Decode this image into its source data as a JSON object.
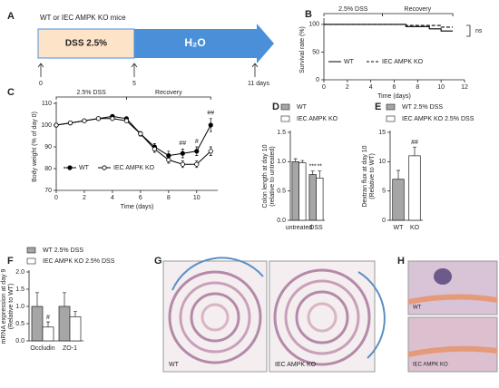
{
  "panel_labels": [
    "A",
    "B",
    "C",
    "D",
    "E",
    "F",
    "G",
    "H"
  ],
  "timeline": {
    "title": "WT or IEC AMPK KO mice",
    "phases": [
      "DSS 2.5%",
      "H₂O"
    ],
    "ticks": [
      "0",
      "5",
      "11 days"
    ]
  },
  "images": [
    {
      "labels": [
        "WT",
        "IEC AMPK KO"
      ]
    },
    {
      "labels": [
        "WT",
        "IEC AMPK KO"
      ]
    }
  ],
  "chart_data": [
    {
      "type": "line",
      "ylabel": [
        "Survival rate (%)"
      ],
      "xlabel": "Time (days)",
      "xlim": [
        0,
        12
      ],
      "xticks": [
        0,
        2,
        4,
        6,
        8,
        10,
        12
      ],
      "ylim": [
        0,
        108
      ],
      "yticks": [
        0,
        50,
        100
      ],
      "periods": [
        {
          "label": "2.5% DSS",
          "start": 0,
          "end": 5
        },
        {
          "label": "Recovery",
          "start": 5,
          "end": 11
        }
      ],
      "annotations": [
        "ns"
      ],
      "series": [
        {
          "name": "WT",
          "color": "#000000",
          "dash": false,
          "x": [
            0,
            7,
            7,
            9,
            9,
            10,
            10,
            11
          ],
          "values": [
            100,
            100,
            96,
            96,
            92,
            92,
            88,
            88
          ]
        },
        {
          "name": "IEC AMPK KO",
          "color": "#000000",
          "dash": true,
          "x": [
            0,
            7,
            7,
            10,
            10,
            11
          ],
          "values": [
            100,
            100,
            98,
            98,
            95,
            95
          ]
        }
      ]
    },
    {
      "type": "line",
      "ylabel": [
        "Body weight (% of day 0)"
      ],
      "xlabel": "Time (days)",
      "markers": true,
      "xlim": [
        0,
        11.5
      ],
      "xticks": [
        0,
        2,
        4,
        6,
        8,
        10
      ],
      "ylim": [
        70,
        110
      ],
      "yticks": [
        70,
        80,
        90,
        100,
        110
      ],
      "periods": [
        {
          "label": "2.5% DSS",
          "start": 0,
          "end": 5
        },
        {
          "label": "Recovery",
          "start": 5,
          "end": 11
        }
      ],
      "series": [
        {
          "name": "WT",
          "color": "#000000",
          "marker_fill": "#000000",
          "dash": false,
          "x": [
            0,
            1,
            2,
            3,
            4,
            5,
            6,
            7,
            8,
            9,
            10,
            11
          ],
          "values": [
            100,
            101,
            102,
            103,
            104,
            103,
            96,
            90,
            86,
            87,
            88,
            100
          ],
          "errors": [
            0.5,
            0.5,
            0.6,
            0.7,
            0.8,
            0.8,
            1,
            1.5,
            2,
            2,
            2,
            3
          ],
          "significance": [
            null,
            null,
            null,
            null,
            null,
            null,
            null,
            null,
            null,
            "##",
            "#",
            "##"
          ]
        },
        {
          "name": "IEC AMPK KO",
          "color": "#000000",
          "marker_fill": "#ffffff",
          "dash": false,
          "x": [
            0,
            1,
            2,
            3,
            4,
            5,
            6,
            7,
            8,
            9,
            10,
            11
          ],
          "values": [
            100,
            101,
            102,
            103,
            103,
            102,
            96,
            89,
            84,
            82,
            82,
            88
          ],
          "errors": [
            0.5,
            0.5,
            0.6,
            0.7,
            0.8,
            0.8,
            1,
            1.5,
            1.5,
            1.5,
            1.5,
            2
          ]
        }
      ]
    },
    {
      "type": "bar",
      "ylabel": [
        "Colon length at day 10",
        "(relative to untreated)"
      ],
      "categories": [
        "untreated",
        "DSS"
      ],
      "ylim": [
        0,
        1.5
      ],
      "yticks": [
        {
          "value": 0,
          "label": "0.0"
        },
        0.5,
        {
          "value": 1,
          "label": "1.0"
        },
        1.5
      ],
      "series": [
        {
          "name": "WT",
          "color": "#a6a6a6",
          "values": [
            1.0,
            0.78
          ],
          "errors": [
            0.05,
            0.06
          ],
          "significance": [
            null,
            "***"
          ]
        },
        {
          "name": "IEC AMPK KO",
          "color": "#ffffff",
          "values": [
            0.98,
            0.72
          ],
          "errors": [
            0.04,
            0.12
          ],
          "significance": [
            null,
            "**"
          ]
        }
      ]
    },
    {
      "type": "bar",
      "ylabel": [
        "Dextran flux at day 10",
        "(Relative to WT)"
      ],
      "categories": [
        "WT",
        "KO"
      ],
      "stacked_categories": true,
      "ylim": [
        0,
        15
      ],
      "yticks": [
        0,
        5,
        10,
        15
      ],
      "series": [
        {
          "name": "WT 2.5% DSS",
          "color": "#a6a6a6",
          "values": [
            7,
            null
          ],
          "errors": [
            1.5,
            null
          ]
        },
        {
          "name": "IEC AMPK KO 2.5% DSS",
          "color": "#ffffff",
          "values": [
            null,
            11
          ],
          "errors": [
            null,
            1.5
          ],
          "significance": [
            null,
            "##"
          ]
        }
      ]
    },
    {
      "type": "bar",
      "ylabel": [
        "mRNA expression at day 9",
        "(Relative to WT)"
      ],
      "categories": [
        "Occludin",
        "ZO-1"
      ],
      "ylim": [
        0,
        2
      ],
      "yticks": [
        {
          "value": 0,
          "label": "0.0"
        },
        0.5,
        {
          "value": 1,
          "label": "1.0"
        },
        1.5,
        {
          "value": 2,
          "label": "2.0"
        }
      ],
      "series": [
        {
          "name": "WT 2.5% DSS",
          "color": "#a6a6a6",
          "values": [
            1.0,
            1.0
          ],
          "errors": [
            0.4,
            0.4
          ]
        },
        {
          "name": "IEC AMPK KO 2.5% DSS",
          "color": "#ffffff",
          "values": [
            0.4,
            0.7
          ],
          "errors": [
            0.15,
            0.15
          ],
          "significance": [
            "#",
            null
          ]
        }
      ]
    }
  ]
}
